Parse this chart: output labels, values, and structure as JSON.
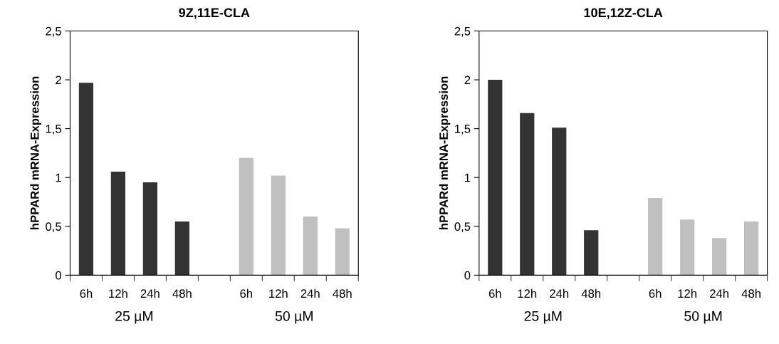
{
  "chart_data": [
    {
      "type": "bar",
      "title": "9Z,11E-CLA",
      "ylabel": "hPPARd mRNA-Expression",
      "categories": [
        "6h",
        "12h",
        "24h",
        "48h",
        null,
        "6h",
        "12h",
        "24h",
        "48h"
      ],
      "values": [
        1.97,
        1.06,
        0.95,
        0.55,
        null,
        1.2,
        1.02,
        0.6,
        0.48
      ],
      "colors": [
        "#333333",
        "#333333",
        "#333333",
        "#333333",
        "#333333",
        "#c0c0c0",
        "#c0c0c0",
        "#c0c0c0",
        "#c0c0c0"
      ],
      "annotations": [
        "25 µM",
        "50 µM"
      ],
      "ylim": [
        0,
        2.5
      ],
      "yticks": [
        0,
        {
          "value": 0.5,
          "label": "0,5"
        },
        1,
        {
          "value": 1.5,
          "label": "1,5"
        },
        2,
        {
          "value": 2.5,
          "label": "2,5"
        }
      ],
      "grid": false,
      "legend": false
    },
    {
      "type": "bar",
      "title": "10E,12Z-CLA",
      "ylabel": "hPPARd mRNA-Expression",
      "categories": [
        "6h",
        "12h",
        "24h",
        "48h",
        null,
        "6h",
        "12h",
        "24h",
        "48h"
      ],
      "values": [
        2.0,
        1.66,
        1.51,
        0.46,
        null,
        0.79,
        0.57,
        0.38,
        0.55
      ],
      "colors": [
        "#333333",
        "#333333",
        "#333333",
        "#333333",
        "#333333",
        "#c0c0c0",
        "#c0c0c0",
        "#c0c0c0",
        "#c0c0c0"
      ],
      "annotations": [
        "25 µM",
        "50 µM"
      ],
      "ylim": [
        0,
        2.5
      ],
      "yticks": [
        0,
        {
          "value": 0.5,
          "label": "0,5"
        },
        1,
        {
          "value": 1.5,
          "label": "1,5"
        },
        2,
        {
          "value": 2.5,
          "label": "2,5"
        }
      ],
      "grid": false,
      "legend": false
    }
  ]
}
